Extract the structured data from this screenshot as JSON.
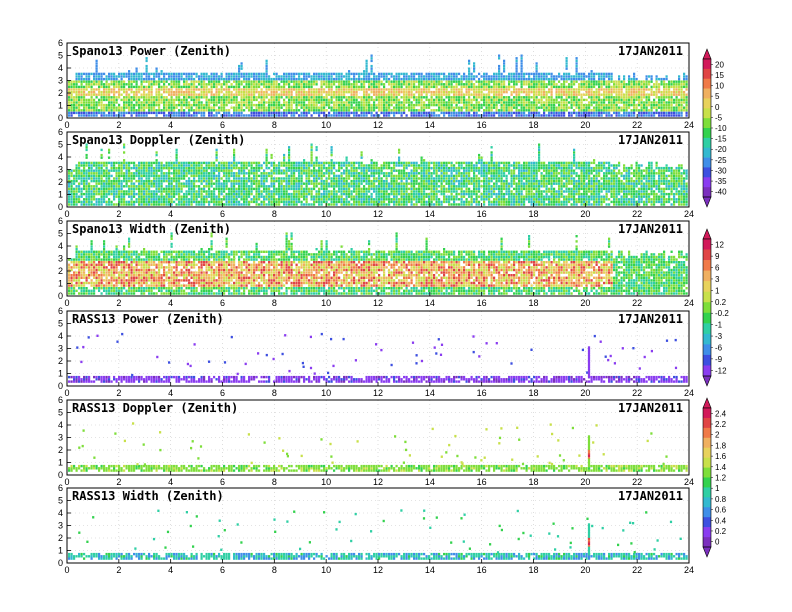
{
  "figure": {
    "date": "17JAN2011"
  },
  "chart_data": [
    {
      "type": "heatmap",
      "title": "Spano13 Power (Zenith)",
      "date": "17JAN2011",
      "x_ticks": [
        "0",
        "2",
        "4",
        "6",
        "8",
        "10",
        "12",
        "14",
        "16",
        "18",
        "20",
        "22",
        "24"
      ],
      "y_ticks": [
        "0",
        "1",
        "2",
        "3",
        "4",
        "5",
        "6"
      ],
      "xlim": [
        0,
        24
      ],
      "ylim": [
        0,
        6
      ],
      "grid": true,
      "pattern": "power",
      "description_values": {
        "dense_band_km": [
          0.3,
          4.0
        ],
        "peak_band_km": [
          1.8,
          2.5
        ]
      }
    },
    {
      "type": "heatmap",
      "title": "Spano13 Doppler (Zenith)",
      "date": "17JAN2011",
      "x_ticks": [
        "0",
        "2",
        "4",
        "6",
        "8",
        "10",
        "12",
        "14",
        "16",
        "18",
        "20",
        "22",
        "24"
      ],
      "y_ticks": [
        "0",
        "1",
        "2",
        "3",
        "4",
        "5",
        "6"
      ],
      "xlim": [
        0,
        24
      ],
      "ylim": [
        0,
        6
      ],
      "grid": true,
      "pattern": "doppler"
    },
    {
      "type": "heatmap",
      "title": "Spano13 Width (Zenith)",
      "date": "17JAN2011",
      "x_ticks": [
        "0",
        "2",
        "4",
        "6",
        "8",
        "10",
        "12",
        "14",
        "16",
        "18",
        "20",
        "22",
        "24"
      ],
      "y_ticks": [
        "0",
        "1",
        "2",
        "3",
        "4",
        "5",
        "6"
      ],
      "xlim": [
        0,
        24
      ],
      "ylim": [
        0,
        6
      ],
      "grid": true,
      "pattern": "width"
    },
    {
      "type": "heatmap",
      "title": "RASS13 Power (Zenith)",
      "date": "17JAN2011",
      "x_ticks": [
        "0",
        "2",
        "4",
        "6",
        "8",
        "10",
        "12",
        "14",
        "16",
        "18",
        "20",
        "22",
        "24"
      ],
      "y_ticks": [
        "0",
        "1",
        "2",
        "3",
        "4",
        "5",
        "6"
      ],
      "xlim": [
        0,
        24
      ],
      "ylim": [
        0,
        6
      ],
      "grid": true,
      "pattern": "rass_power"
    },
    {
      "type": "heatmap",
      "title": "RASS13 Doppler (Zenith)",
      "date": "17JAN2011",
      "x_ticks": [
        "0",
        "2",
        "4",
        "6",
        "8",
        "10",
        "12",
        "14",
        "16",
        "18",
        "20",
        "22",
        "24"
      ],
      "y_ticks": [
        "0",
        "1",
        "2",
        "3",
        "4",
        "5",
        "6"
      ],
      "xlim": [
        0,
        24
      ],
      "ylim": [
        0,
        6
      ],
      "grid": true,
      "pattern": "rass_doppler"
    },
    {
      "type": "heatmap",
      "title": "RASS13 Width (Zenith)",
      "date": "17JAN2011",
      "x_ticks": [
        "0",
        "2",
        "4",
        "6",
        "8",
        "10",
        "12",
        "14",
        "16",
        "18",
        "20",
        "22",
        "24"
      ],
      "y_ticks": [
        "0",
        "1",
        "2",
        "3",
        "4",
        "5",
        "6"
      ],
      "xlim": [
        0,
        24
      ],
      "ylim": [
        0,
        6
      ],
      "grid": true,
      "pattern": "rass_width"
    }
  ],
  "colorbars": [
    {
      "labels": [
        "20",
        "15",
        "10",
        "5",
        "0",
        "-5",
        "-10",
        "-15",
        "-20",
        "-25",
        "-30",
        "-35",
        "-40"
      ]
    },
    {
      "labels": [
        "12",
        "9",
        "6",
        "3",
        "1",
        "0.2",
        "-0.2",
        "-1",
        "-3",
        "-6",
        "-9",
        "-12"
      ]
    },
    {
      "labels": [
        "2.4",
        "2.2",
        "2",
        "1.8",
        "1.6",
        "1.4",
        "1.2",
        "1",
        "0.8",
        "0.6",
        "0.4",
        "0.2",
        "0"
      ]
    }
  ],
  "palette": [
    "#7b2fbe",
    "#8a3cf0",
    "#3d4fe0",
    "#3f8ee8",
    "#33b9d0",
    "#2fcfa4",
    "#33d24e",
    "#7ede3a",
    "#c8e04a",
    "#e8d25c",
    "#f0b060",
    "#f07a48",
    "#e04545",
    "#d21a5a"
  ]
}
